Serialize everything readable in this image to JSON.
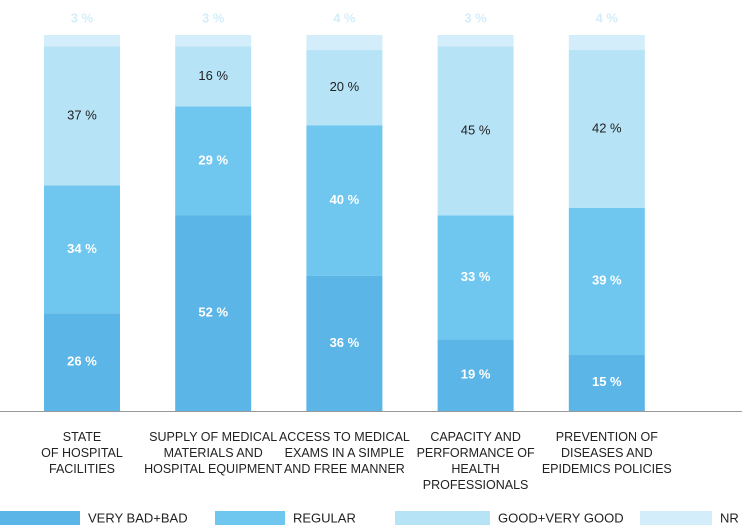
{
  "chart_data": {
    "type": "stacked_bar",
    "categories": [
      "STATE\nOF HOSPITAL\nFACILITIES",
      "SUPPLY OF MEDICAL\nMATERIALS AND\nHOSPITAL EQUIPMENT",
      "ACCESS TO MEDICAL\nEXAMS IN A SIMPLE\nAND FREE MANNER",
      "CAPACITY AND\nPERFORMANCE OF\nHEALTH PROFESSIONALS",
      "PREVENTION OF\nDISEASES AND\nEPIDEMICS POLICIES"
    ],
    "series": [
      {
        "name": "VERY BAD+BAD",
        "color": "#5bb5e6",
        "values": [
          26,
          52,
          36,
          19,
          15
        ],
        "value_labels": [
          "26 %",
          "52 %",
          "36 %",
          "19 %",
          "15 %"
        ]
      },
      {
        "name": "REGULAR",
        "color": "#6fc7ef",
        "values": [
          34,
          29,
          40,
          33,
          39
        ],
        "value_labels": [
          "34 %",
          "29 %",
          "40 %",
          "33 %",
          "39 %"
        ]
      },
      {
        "name": "GOOD+VERY GOOD",
        "color": "#b7e3f7",
        "values": [
          37,
          16,
          20,
          45,
          42
        ],
        "value_labels": [
          "37 %",
          "16 %",
          "20 %",
          "45 %",
          "42 %"
        ]
      },
      {
        "name": "NR",
        "color": "#d3eefa",
        "values": [
          3,
          3,
          4,
          3,
          4
        ],
        "value_labels": [
          "3 %",
          "3 %",
          "4 %",
          "3 %",
          "4 %"
        ]
      }
    ]
  }
}
